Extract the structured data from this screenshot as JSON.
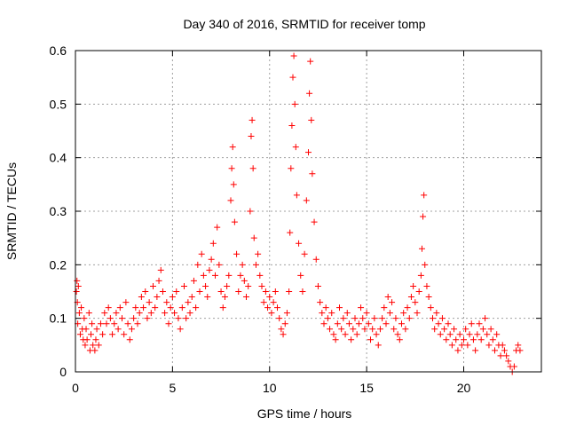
{
  "chart_data": {
    "type": "scatter",
    "title": "Day 340 of 2016, SRMTID for receiver tomp",
    "xlabel": "GPS time / hours",
    "ylabel": "SRMTID / TECUs",
    "xlim": [
      0,
      24
    ],
    "ylim": [
      0,
      0.6
    ],
    "xticks": [
      0,
      5,
      10,
      15,
      20
    ],
    "yticks": [
      0,
      0.1,
      0.2,
      0.3,
      0.4,
      0.5,
      0.6
    ],
    "xtick_labels": [
      "0",
      "5",
      "10",
      "15",
      "20"
    ],
    "ytick_labels": [
      "0",
      "0.1",
      "0.2",
      "0.3",
      "0.4",
      "0.5",
      "0.6"
    ],
    "grid": true,
    "marker": "plus",
    "color": "#ff0000",
    "series": [
      {
        "name": "SRMTID",
        "points": [
          [
            0.05,
            0.15
          ],
          [
            0.08,
            0.17
          ],
          [
            0.1,
            0.13
          ],
          [
            0.12,
            0.09
          ],
          [
            0.15,
            0.16
          ],
          [
            0.2,
            0.11
          ],
          [
            0.25,
            0.07
          ],
          [
            0.3,
            0.12
          ],
          [
            0.35,
            0.08
          ],
          [
            0.4,
            0.06
          ],
          [
            0.45,
            0.1
          ],
          [
            0.5,
            0.05
          ],
          [
            0.55,
            0.08
          ],
          [
            0.6,
            0.06
          ],
          [
            0.7,
            0.11
          ],
          [
            0.75,
            0.04
          ],
          [
            0.8,
            0.07
          ],
          [
            0.85,
            0.09
          ],
          [
            0.9,
            0.05
          ],
          [
            1.0,
            0.04
          ],
          [
            1.05,
            0.06
          ],
          [
            1.1,
            0.08
          ],
          [
            1.2,
            0.05
          ],
          [
            1.3,
            0.09
          ],
          [
            1.4,
            0.07
          ],
          [
            1.5,
            0.11
          ],
          [
            1.6,
            0.09
          ],
          [
            1.7,
            0.12
          ],
          [
            1.8,
            0.1
          ],
          [
            1.9,
            0.07
          ],
          [
            2.0,
            0.09
          ],
          [
            2.1,
            0.11
          ],
          [
            2.2,
            0.08
          ],
          [
            2.3,
            0.12
          ],
          [
            2.4,
            0.1
          ],
          [
            2.5,
            0.07
          ],
          [
            2.6,
            0.13
          ],
          [
            2.7,
            0.09
          ],
          [
            2.8,
            0.06
          ],
          [
            2.9,
            0.08
          ],
          [
            3.0,
            0.1
          ],
          [
            3.1,
            0.12
          ],
          [
            3.2,
            0.09
          ],
          [
            3.3,
            0.11
          ],
          [
            3.4,
            0.14
          ],
          [
            3.5,
            0.12
          ],
          [
            3.6,
            0.15
          ],
          [
            3.7,
            0.1
          ],
          [
            3.8,
            0.13
          ],
          [
            3.9,
            0.11
          ],
          [
            4.0,
            0.16
          ],
          [
            4.1,
            0.12
          ],
          [
            4.2,
            0.14
          ],
          [
            4.3,
            0.17
          ],
          [
            4.4,
            0.19
          ],
          [
            4.5,
            0.15
          ],
          [
            4.6,
            0.11
          ],
          [
            4.7,
            0.13
          ],
          [
            4.8,
            0.09
          ],
          [
            4.9,
            0.12
          ],
          [
            5.0,
            0.14
          ],
          [
            5.1,
            0.11
          ],
          [
            5.2,
            0.15
          ],
          [
            5.3,
            0.1
          ],
          [
            5.4,
            0.08
          ],
          [
            5.5,
            0.12
          ],
          [
            5.6,
            0.16
          ],
          [
            5.7,
            0.1
          ],
          [
            5.8,
            0.13
          ],
          [
            5.9,
            0.11
          ],
          [
            6.0,
            0.14
          ],
          [
            6.1,
            0.17
          ],
          [
            6.2,
            0.12
          ],
          [
            6.3,
            0.2
          ],
          [
            6.4,
            0.15
          ],
          [
            6.5,
            0.22
          ],
          [
            6.6,
            0.18
          ],
          [
            6.7,
            0.16
          ],
          [
            6.8,
            0.14
          ],
          [
            6.9,
            0.19
          ],
          [
            7.0,
            0.21
          ],
          [
            7.1,
            0.24
          ],
          [
            7.2,
            0.18
          ],
          [
            7.3,
            0.27
          ],
          [
            7.4,
            0.2
          ],
          [
            7.5,
            0.15
          ],
          [
            7.6,
            0.12
          ],
          [
            7.7,
            0.14
          ],
          [
            7.8,
            0.16
          ],
          [
            7.9,
            0.18
          ],
          [
            8.0,
            0.32
          ],
          [
            8.05,
            0.38
          ],
          [
            8.1,
            0.42
          ],
          [
            8.15,
            0.35
          ],
          [
            8.2,
            0.28
          ],
          [
            8.3,
            0.22
          ],
          [
            8.4,
            0.15
          ],
          [
            8.5,
            0.18
          ],
          [
            8.6,
            0.2
          ],
          [
            8.7,
            0.17
          ],
          [
            8.8,
            0.14
          ],
          [
            8.9,
            0.16
          ],
          [
            9.0,
            0.3
          ],
          [
            9.05,
            0.44
          ],
          [
            9.1,
            0.47
          ],
          [
            9.15,
            0.38
          ],
          [
            9.2,
            0.25
          ],
          [
            9.3,
            0.2
          ],
          [
            9.4,
            0.22
          ],
          [
            9.5,
            0.18
          ],
          [
            9.6,
            0.16
          ],
          [
            9.7,
            0.13
          ],
          [
            9.8,
            0.15
          ],
          [
            9.9,
            0.12
          ],
          [
            10.0,
            0.14
          ],
          [
            10.1,
            0.11
          ],
          [
            10.2,
            0.13
          ],
          [
            10.3,
            0.15
          ],
          [
            10.4,
            0.12
          ],
          [
            10.5,
            0.1
          ],
          [
            10.6,
            0.08
          ],
          [
            10.7,
            0.07
          ],
          [
            10.8,
            0.09
          ],
          [
            10.9,
            0.11
          ],
          [
            11.0,
            0.15
          ],
          [
            11.05,
            0.26
          ],
          [
            11.1,
            0.38
          ],
          [
            11.15,
            0.46
          ],
          [
            11.2,
            0.55
          ],
          [
            11.25,
            0.59
          ],
          [
            11.3,
            0.5
          ],
          [
            11.35,
            0.42
          ],
          [
            11.4,
            0.33
          ],
          [
            11.5,
            0.24
          ],
          [
            11.6,
            0.18
          ],
          [
            11.7,
            0.15
          ],
          [
            11.8,
            0.22
          ],
          [
            11.9,
            0.32
          ],
          [
            12.0,
            0.41
          ],
          [
            12.05,
            0.52
          ],
          [
            12.1,
            0.58
          ],
          [
            12.15,
            0.47
          ],
          [
            12.2,
            0.37
          ],
          [
            12.3,
            0.28
          ],
          [
            12.4,
            0.21
          ],
          [
            12.5,
            0.16
          ],
          [
            12.6,
            0.13
          ],
          [
            12.7,
            0.11
          ],
          [
            12.8,
            0.09
          ],
          [
            12.9,
            0.12
          ],
          [
            13.0,
            0.1
          ],
          [
            13.1,
            0.08
          ],
          [
            13.2,
            0.11
          ],
          [
            13.3,
            0.07
          ],
          [
            13.4,
            0.06
          ],
          [
            13.5,
            0.09
          ],
          [
            13.6,
            0.12
          ],
          [
            13.7,
            0.08
          ],
          [
            13.8,
            0.1
          ],
          [
            13.9,
            0.07
          ],
          [
            14.0,
            0.11
          ],
          [
            14.1,
            0.09
          ],
          [
            14.2,
            0.06
          ],
          [
            14.3,
            0.08
          ],
          [
            14.4,
            0.1
          ],
          [
            14.5,
            0.07
          ],
          [
            14.6,
            0.09
          ],
          [
            14.7,
            0.12
          ],
          [
            14.8,
            0.1
          ],
          [
            14.9,
            0.08
          ],
          [
            15.0,
            0.11
          ],
          [
            15.1,
            0.09
          ],
          [
            15.2,
            0.06
          ],
          [
            15.3,
            0.08
          ],
          [
            15.4,
            0.1
          ],
          [
            15.5,
            0.07
          ],
          [
            15.6,
            0.05
          ],
          [
            15.7,
            0.08
          ],
          [
            15.8,
            0.1
          ],
          [
            15.9,
            0.12
          ],
          [
            16.0,
            0.09
          ],
          [
            16.1,
            0.14
          ],
          [
            16.2,
            0.11
          ],
          [
            16.3,
            0.13
          ],
          [
            16.4,
            0.08
          ],
          [
            16.5,
            0.1
          ],
          [
            16.6,
            0.07
          ],
          [
            16.7,
            0.06
          ],
          [
            16.8,
            0.09
          ],
          [
            16.9,
            0.11
          ],
          [
            17.0,
            0.08
          ],
          [
            17.1,
            0.12
          ],
          [
            17.2,
            0.1
          ],
          [
            17.3,
            0.14
          ],
          [
            17.4,
            0.16
          ],
          [
            17.5,
            0.13
          ],
          [
            17.6,
            0.11
          ],
          [
            17.7,
            0.15
          ],
          [
            17.8,
            0.18
          ],
          [
            17.85,
            0.23
          ],
          [
            17.9,
            0.29
          ],
          [
            17.95,
            0.33
          ],
          [
            18.0,
            0.2
          ],
          [
            18.1,
            0.16
          ],
          [
            18.2,
            0.14
          ],
          [
            18.3,
            0.12
          ],
          [
            18.4,
            0.1
          ],
          [
            18.5,
            0.08
          ],
          [
            18.6,
            0.11
          ],
          [
            18.7,
            0.09
          ],
          [
            18.8,
            0.07
          ],
          [
            18.9,
            0.1
          ],
          [
            19.0,
            0.08
          ],
          [
            19.1,
            0.06
          ],
          [
            19.2,
            0.09
          ],
          [
            19.3,
            0.07
          ],
          [
            19.4,
            0.05
          ],
          [
            19.5,
            0.08
          ],
          [
            19.6,
            0.06
          ],
          [
            19.7,
            0.04
          ],
          [
            19.8,
            0.07
          ],
          [
            19.9,
            0.05
          ],
          [
            20.0,
            0.06
          ],
          [
            20.1,
            0.08
          ],
          [
            20.2,
            0.05
          ],
          [
            20.3,
            0.07
          ],
          [
            20.4,
            0.09
          ],
          [
            20.5,
            0.06
          ],
          [
            20.6,
            0.04
          ],
          [
            20.7,
            0.07
          ],
          [
            20.8,
            0.09
          ],
          [
            20.9,
            0.06
          ],
          [
            21.0,
            0.08
          ],
          [
            21.1,
            0.1
          ],
          [
            21.2,
            0.07
          ],
          [
            21.3,
            0.05
          ],
          [
            21.4,
            0.08
          ],
          [
            21.5,
            0.06
          ],
          [
            21.6,
            0.04
          ],
          [
            21.7,
            0.07
          ],
          [
            21.8,
            0.05
          ],
          [
            21.9,
            0.03
          ],
          [
            22.0,
            0.05
          ],
          [
            22.1,
            0.04
          ],
          [
            22.2,
            0.03
          ],
          [
            22.3,
            0.02
          ],
          [
            22.4,
            0.01
          ],
          [
            22.5,
            0.0
          ],
          [
            22.6,
            0.01
          ],
          [
            22.7,
            0.04
          ],
          [
            22.8,
            0.05
          ],
          [
            22.9,
            0.04
          ]
        ]
      }
    ]
  }
}
